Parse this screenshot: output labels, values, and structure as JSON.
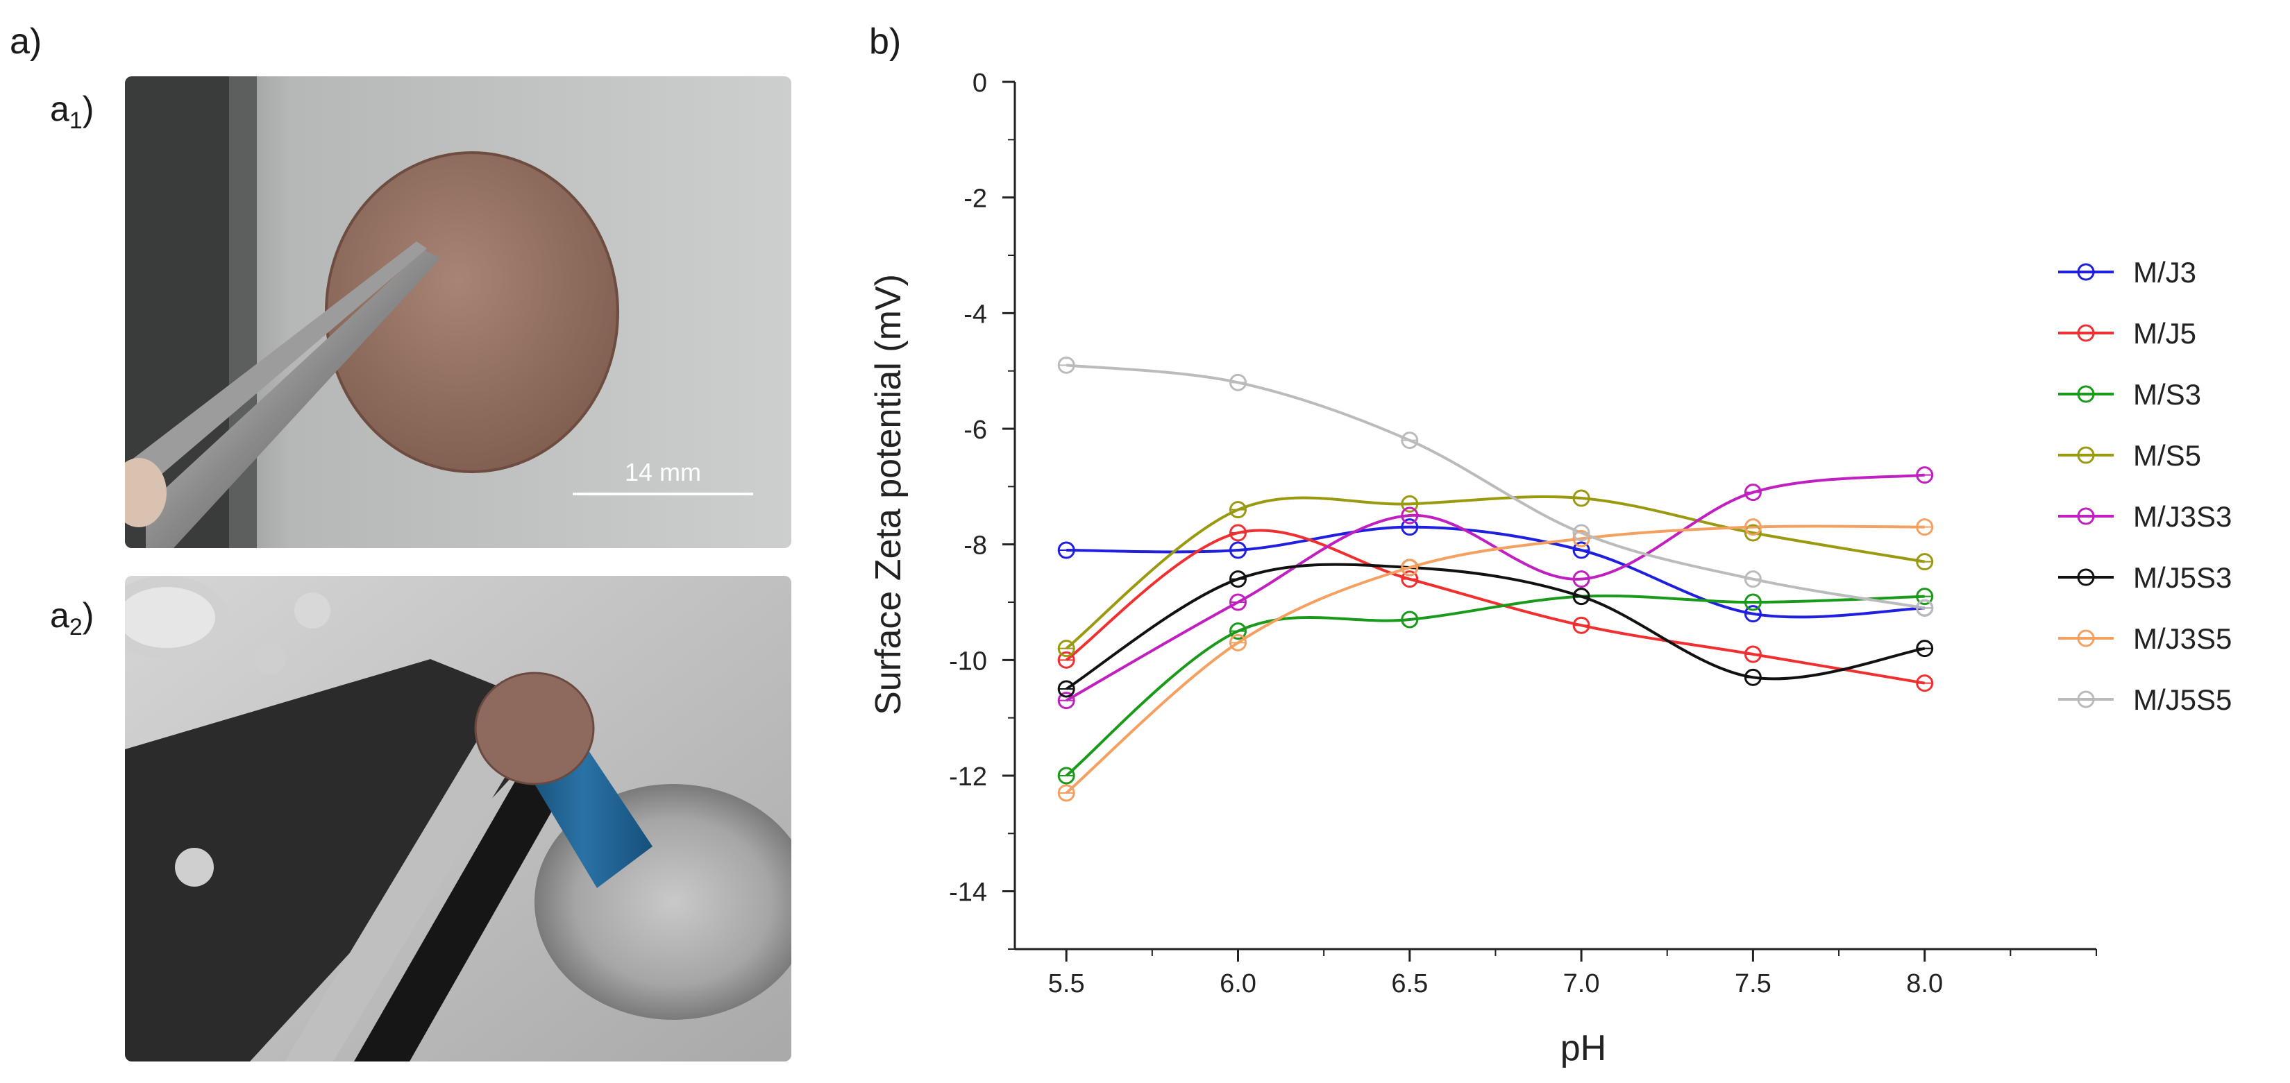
{
  "panels": {
    "a_label": "a)",
    "a1_label": "a",
    "a1_sub": "1",
    "a2_label": "a",
    "a2_sub": "2",
    "b_label": "b)"
  },
  "photo_a1": {
    "scale_bar_label": "14 mm",
    "membrane_color": "#8c6a5a",
    "background_color": "#c4c6c5"
  },
  "photo_a2": {
    "holder_color": "#1f5f8a",
    "stage_color": "#2a2a2a"
  },
  "chart_data": {
    "type": "line",
    "title": "",
    "xlabel": "pH",
    "ylabel": "Surface Zeta potential (mV)",
    "xlim": [
      5.35,
      8.5
    ],
    "ylim": [
      -15,
      0
    ],
    "xticks": [
      5.5,
      6.0,
      6.5,
      7.0,
      7.5,
      8.0
    ],
    "xtick_labels": [
      "5.5",
      "6.0",
      "6.5",
      "7.0",
      "7.5",
      "8.0"
    ],
    "yticks": [
      0,
      -2,
      -4,
      -6,
      -8,
      -10,
      -12,
      -14
    ],
    "ytick_labels": [
      "0",
      "-2",
      "-4",
      "-6",
      "-8",
      "-10",
      "-12",
      "-14"
    ],
    "grid": false,
    "legend_position": "right",
    "x": [
      5.5,
      6.0,
      6.5,
      7.0,
      7.5,
      8.0
    ],
    "series": [
      {
        "name": "M/J3",
        "color": "#1f1fe0",
        "values": [
          -8.1,
          -8.1,
          -7.7,
          -8.1,
          -9.2,
          -9.1
        ]
      },
      {
        "name": "M/J5",
        "color": "#f03030",
        "values": [
          -10.0,
          -7.8,
          -8.6,
          -9.4,
          -9.9,
          -10.4
        ]
      },
      {
        "name": "M/S3",
        "color": "#1a9a1a",
        "values": [
          -12.0,
          -9.5,
          -9.3,
          -8.9,
          -9.0,
          -8.9
        ]
      },
      {
        "name": "M/S5",
        "color": "#9a9a10",
        "values": [
          -9.8,
          -7.4,
          -7.3,
          -7.2,
          -7.8,
          -8.3
        ]
      },
      {
        "name": "M/J3S3",
        "color": "#c020c0",
        "values": [
          -10.7,
          -9.0,
          -7.5,
          -8.6,
          -7.1,
          -6.8
        ]
      },
      {
        "name": "M/J5S3",
        "color": "#111111",
        "values": [
          -10.5,
          -8.6,
          -8.4,
          -8.9,
          -10.3,
          -9.8
        ]
      },
      {
        "name": "M/J3S5",
        "color": "#f4a060",
        "values": [
          -12.3,
          -9.7,
          -8.4,
          -7.9,
          -7.7,
          -7.7
        ]
      },
      {
        "name": "M/J5S5",
        "color": "#bbbbbb",
        "values": [
          -4.9,
          -5.2,
          -6.2,
          -7.8,
          -8.6,
          -9.1
        ]
      }
    ]
  }
}
